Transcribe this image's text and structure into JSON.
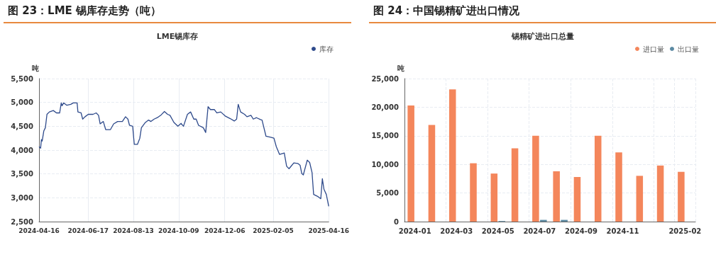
{
  "chart_data": [
    {
      "type": "line",
      "title": "图 23：LME 锡库存走势（吨）",
      "subtitle": "LME锡库存",
      "ylabel": "吨",
      "legend": "top right",
      "grid": true,
      "marker": "none",
      "xlim": [
        "2024-04-16",
        "2025-04-16"
      ],
      "xticks": [
        "2024-04-16",
        "2024-06-17",
        "2024-08-13",
        "2024-10-09",
        "2024-12-06",
        "2025-02-05",
        "2025-04-16"
      ],
      "ylim": [
        2500,
        5500
      ],
      "yticks": [
        {
          "value": 2500,
          "label": "2,500"
        },
        {
          "value": 3000,
          "label": "3,000"
        },
        {
          "value": 3500,
          "label": "3,500"
        },
        {
          "value": 4000,
          "label": "4,000"
        },
        {
          "value": 4500,
          "label": "4,500"
        },
        {
          "value": 5000,
          "label": "5,000"
        },
        {
          "value": 5500,
          "label": "5,500"
        }
      ],
      "x": [
        "2024-04-16",
        "2024-04-18",
        "2024-04-19",
        "2024-04-20",
        "2024-04-22",
        "2024-04-24",
        "2024-04-26",
        "2024-04-29",
        "2024-05-04",
        "2024-05-08",
        "2024-05-12",
        "2024-05-14",
        "2024-05-15",
        "2024-05-17",
        "2024-05-21",
        "2024-05-26",
        "2024-05-29",
        "2024-06-03",
        "2024-06-04",
        "2024-06-08",
        "2024-06-10",
        "2024-06-13",
        "2024-06-17",
        "2024-06-23",
        "2024-06-27",
        "2024-06-30",
        "2024-07-02",
        "2024-07-06",
        "2024-07-09",
        "2024-07-15",
        "2024-07-19",
        "2024-07-24",
        "2024-07-30",
        "2024-08-03",
        "2024-08-06",
        "2024-08-08",
        "2024-08-12",
        "2024-08-14",
        "2024-08-18",
        "2024-08-21",
        "2024-08-23",
        "2024-08-28",
        "2024-09-01",
        "2024-09-04",
        "2024-09-08",
        "2024-09-12",
        "2024-09-17",
        "2024-09-21",
        "2024-09-25",
        "2024-09-28",
        "2024-10-03",
        "2024-10-08",
        "2024-10-12",
        "2024-10-15",
        "2024-10-20",
        "2024-10-24",
        "2024-10-28",
        "2024-10-31",
        "2024-11-03",
        "2024-11-09",
        "2024-11-12",
        "2024-11-15",
        "2024-11-18",
        "2024-11-23",
        "2024-11-26",
        "2024-12-01",
        "2024-12-07",
        "2024-12-13",
        "2024-12-18",
        "2024-12-21",
        "2024-12-23",
        "2024-12-26",
        "2024-12-31",
        "2025-01-03",
        "2025-01-08",
        "2025-01-11",
        "2025-01-15",
        "2025-01-20",
        "2025-01-22",
        "2025-01-27",
        "2025-02-02",
        "2025-02-06",
        "2025-02-09",
        "2025-02-13",
        "2025-02-19",
        "2025-02-22",
        "2025-02-25",
        "2025-02-28",
        "2025-03-03",
        "2025-03-08",
        "2025-03-11",
        "2025-03-13",
        "2025-03-15",
        "2025-03-20",
        "2025-03-23",
        "2025-03-26",
        "2025-03-28",
        "2025-04-02",
        "2025-04-06",
        "2025-04-08",
        "2025-04-10",
        "2025-04-13",
        "2025-04-16"
      ],
      "series": [
        {
          "name": "库存",
          "color": "#2e4a8b",
          "values": [
            4070,
            4040,
            4220,
            4190,
            4400,
            4470,
            4750,
            4800,
            4830,
            4780,
            4780,
            4990,
            4930,
            4990,
            4940,
            4960,
            4990,
            4990,
            4800,
            4780,
            4650,
            4700,
            4750,
            4750,
            4780,
            4730,
            4550,
            4600,
            4430,
            4430,
            4550,
            4600,
            4600,
            4700,
            4650,
            4520,
            4500,
            4120,
            4120,
            4250,
            4470,
            4580,
            4630,
            4600,
            4650,
            4680,
            4740,
            4810,
            4750,
            4730,
            4580,
            4500,
            4560,
            4500,
            4750,
            4800,
            4650,
            4650,
            4520,
            4470,
            4370,
            4910,
            4850,
            4850,
            4780,
            4800,
            4710,
            4660,
            4610,
            4650,
            4960,
            4800,
            4750,
            4700,
            4730,
            4650,
            4680,
            4640,
            4630,
            4290,
            4270,
            4250,
            4070,
            3910,
            3940,
            3660,
            3610,
            3670,
            3730,
            3720,
            3680,
            3510,
            3480,
            3790,
            3740,
            3530,
            3070,
            3030,
            2980,
            3400,
            3180,
            3070,
            2820
          ]
        }
      ]
    },
    {
      "type": "bar",
      "title": "图 24：中国锡精矿进出口情况",
      "subtitle": "锡精矿进出口总量",
      "ylabel": "吨",
      "legend": "top right",
      "grid": true,
      "categories": [
        "2024-01",
        null,
        "2024-03",
        null,
        "2024-05",
        null,
        "2024-07",
        null,
        "2024-09",
        null,
        "2024-11",
        null,
        null,
        "2025-02"
      ],
      "ylim": [
        0,
        25000
      ],
      "yticks": [
        0,
        {
          "value": 5000,
          "label": "5,000"
        },
        {
          "value": 10000,
          "label": "10,000"
        },
        {
          "value": 15000,
          "label": "15,000"
        },
        {
          "value": 20000,
          "label": "20,000"
        },
        {
          "value": 25000,
          "label": "25,000"
        }
      ],
      "series": [
        {
          "name": "进口量",
          "color": "#f4865b",
          "values": [
            20300,
            16900,
            23100,
            10200,
            8400,
            12800,
            15000,
            8800,
            7800,
            15000,
            12100,
            8000,
            9800,
            8700
          ]
        },
        {
          "name": "出口量",
          "color": "#5b8aa3",
          "values": [
            0,
            0,
            0,
            0,
            100,
            0,
            300,
            300,
            0,
            0,
            0,
            0,
            0,
            0
          ]
        }
      ]
    }
  ]
}
